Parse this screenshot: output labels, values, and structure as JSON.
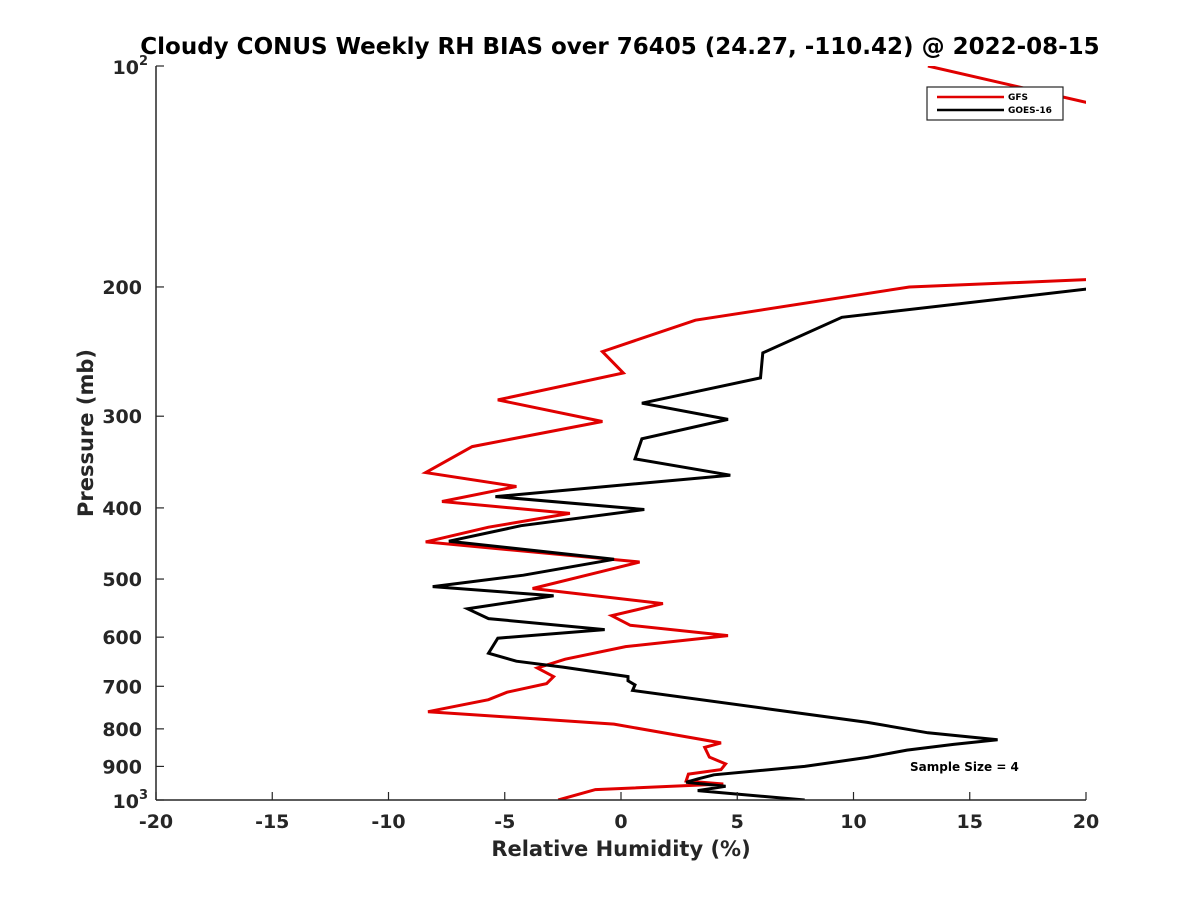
{
  "chart_data": {
    "type": "line",
    "title": "Cloudy CONUS Weekly RH BIAS over 76405 (24.27, -110.42) @ 2022-08-15",
    "xlabel": "Relative Humidity (%)",
    "ylabel": "Pressure (mb)",
    "xlim": [
      -20,
      20
    ],
    "ylim": [
      100,
      1000
    ],
    "y_scale": "log",
    "y_reversed": true,
    "x_ticks": [
      "-20",
      "-15",
      "-10",
      "-5",
      "0",
      "5",
      "10",
      "15",
      "20"
    ],
    "y_ticks": [
      {
        "value": 100,
        "base": "10",
        "exp": "2"
      },
      {
        "value": 200,
        "text": "200"
      },
      {
        "value": 300,
        "text": "300"
      },
      {
        "value": 400,
        "text": "400"
      },
      {
        "value": 500,
        "text": "500"
      },
      {
        "value": 600,
        "text": "600"
      },
      {
        "value": 700,
        "text": "700"
      },
      {
        "value": 800,
        "text": "800"
      },
      {
        "value": 900,
        "text": "900"
      },
      {
        "value": 1000,
        "base": "10",
        "exp": "3"
      }
    ],
    "grid": false,
    "legend_position": "top-right",
    "annotation": "Sample Size = 4",
    "series": [
      {
        "name": "GFS",
        "color": "#e00000",
        "points": [
          [
            13.2,
            100
          ],
          [
            20.5,
            113
          ],
          [
            20.8,
            195
          ],
          [
            12.4,
            200
          ],
          [
            3.2,
            222
          ],
          [
            -0.8,
            245
          ],
          [
            0.1,
            262
          ],
          [
            -5.3,
            285
          ],
          [
            -0.8,
            305
          ],
          [
            -6.4,
            330
          ],
          [
            -8.4,
            358
          ],
          [
            -4.5,
            374
          ],
          [
            -7.7,
            392
          ],
          [
            -2.2,
            407
          ],
          [
            -5.7,
            425
          ],
          [
            -8.4,
            445
          ],
          [
            0.8,
            474
          ],
          [
            -0.8,
            488
          ],
          [
            -3.8,
            515
          ],
          [
            1.8,
            540
          ],
          [
            -0.4,
            561
          ],
          [
            0.4,
            578
          ],
          [
            4.6,
            597
          ],
          [
            0.2,
            618
          ],
          [
            -2.4,
            643
          ],
          [
            -3.6,
            661
          ],
          [
            -2.9,
            679
          ],
          [
            -3.2,
            694
          ],
          [
            -4.9,
            713
          ],
          [
            -5.7,
            730
          ],
          [
            -8.3,
            758
          ],
          [
            -0.3,
            788
          ],
          [
            4.3,
            836
          ],
          [
            3.6,
            848
          ],
          [
            3.8,
            874
          ],
          [
            4.5,
            893
          ],
          [
            4.3,
            909
          ],
          [
            2.9,
            922
          ],
          [
            2.8,
            942
          ],
          [
            4.4,
            951
          ],
          [
            -1.1,
            968
          ],
          [
            -2.7,
            1000
          ]
        ]
      },
      {
        "name": "GOES-16",
        "color": "#000000",
        "points": [
          [
            20.8,
            200
          ],
          [
            9.5,
            220
          ],
          [
            6.1,
            246
          ],
          [
            6.0,
            266
          ],
          [
            0.9,
            288
          ],
          [
            4.6,
            303
          ],
          [
            0.9,
            322
          ],
          [
            0.6,
            343
          ],
          [
            4.7,
            361
          ],
          [
            -5.4,
            386
          ],
          [
            1.0,
            402
          ],
          [
            -4.3,
            423
          ],
          [
            -7.4,
            444
          ],
          [
            -0.3,
            470
          ],
          [
            -4.2,
            494
          ],
          [
            -8.1,
            512
          ],
          [
            -2.9,
            527
          ],
          [
            -6.6,
            549
          ],
          [
            -5.7,
            566
          ],
          [
            -0.7,
            586
          ],
          [
            -5.3,
            602
          ],
          [
            -5.7,
            631
          ],
          [
            -4.5,
            647
          ],
          [
            -2.5,
            659
          ],
          [
            0.3,
            679
          ],
          [
            0.3,
            688
          ],
          [
            0.6,
            697
          ],
          [
            0.5,
            709
          ],
          [
            6.4,
            752
          ],
          [
            10.6,
            784
          ],
          [
            13.2,
            810
          ],
          [
            16.2,
            828
          ],
          [
            14.3,
            840
          ],
          [
            12.3,
            855
          ],
          [
            10.6,
            875
          ],
          [
            7.9,
            900
          ],
          [
            4.0,
            924
          ],
          [
            3.3,
            936
          ],
          [
            2.8,
            946
          ],
          [
            4.5,
            958
          ],
          [
            3.3,
            971
          ],
          [
            7.9,
            1000
          ]
        ]
      }
    ]
  }
}
